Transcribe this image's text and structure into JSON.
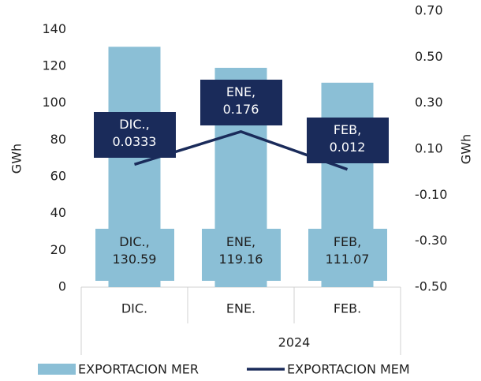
{
  "chart_data": {
    "type": "bar_line",
    "categories": [
      "DIC.",
      "ENE.",
      "FEB."
    ],
    "group_label": "2024",
    "series": [
      {
        "name": "EXPORTACION MER",
        "type": "bar",
        "color": "#8bbfd6",
        "values": [
          130.59,
          119.16,
          111.07
        ],
        "value_labels": [
          "DIC.,\n130.59",
          "ENE,\n119.16",
          "FEB,\n111.07"
        ]
      },
      {
        "name": "EXPORTACION MEM",
        "type": "line",
        "axis": "y2",
        "color": "#1a2b5a",
        "values": [
          0.0333,
          0.176,
          0.012
        ],
        "value_labels": [
          "DIC.,\n0.0333",
          "ENE,\n0.176",
          "FEB,\n0.012"
        ]
      }
    ],
    "ylabel": "GWh",
    "y2label": "GWh",
    "ylim": [
      0,
      150
    ],
    "yticks": [
      0,
      20,
      40,
      60,
      80,
      100,
      120,
      140
    ],
    "y2lim": [
      -0.5,
      0.7
    ],
    "y2ticks": [
      {
        "value": -0.5,
        "label": "-0.50"
      },
      {
        "value": -0.3,
        "label": "-0.30"
      },
      {
        "value": -0.1,
        "label": "-0.10"
      },
      {
        "value": 0.1,
        "label": "0.10"
      },
      {
        "value": 0.3,
        "label": "0.30"
      },
      {
        "value": 0.5,
        "label": "0.50"
      },
      {
        "value": 0.7,
        "label": "0.70"
      }
    ],
    "grid": false,
    "legend": "bottom"
  }
}
